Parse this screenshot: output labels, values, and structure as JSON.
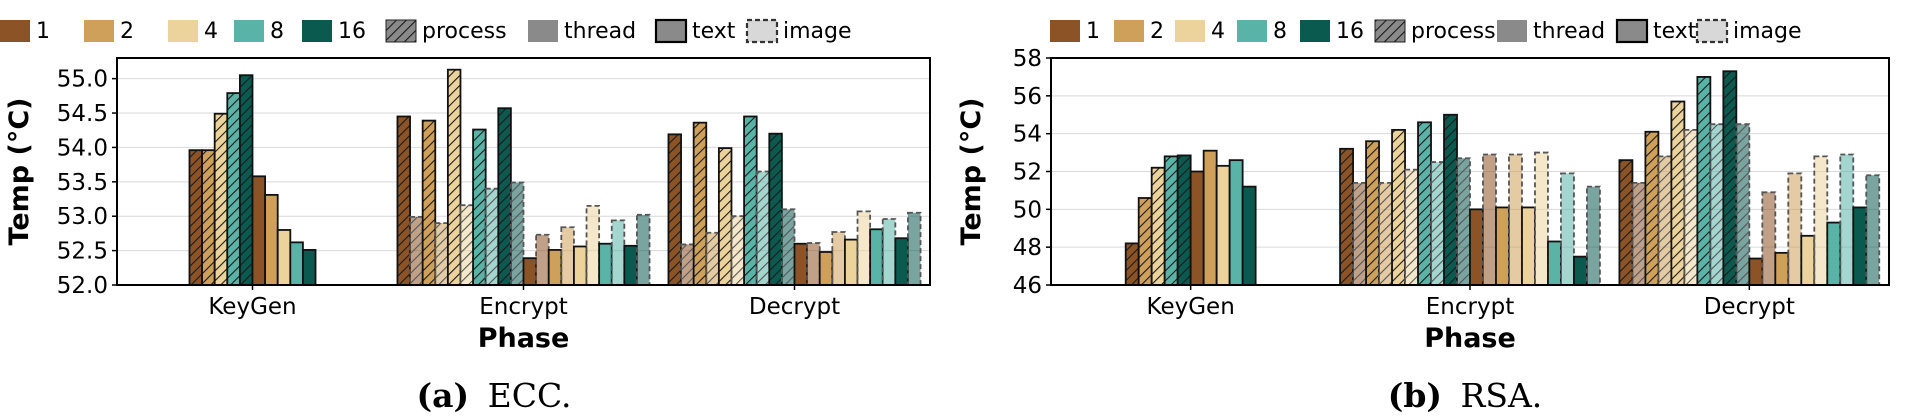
{
  "legend": [
    {
      "label": "1",
      "kind": "color",
      "color": "#8c5426"
    },
    {
      "label": "2",
      "kind": "color",
      "color": "#cfa05a"
    },
    {
      "label": "4",
      "kind": "color",
      "color": "#ecd39c"
    },
    {
      "label": "8",
      "kind": "color",
      "color": "#5ab3a7"
    },
    {
      "label": "16",
      "kind": "color",
      "color": "#0b5a50"
    },
    {
      "label": "process",
      "kind": "process"
    },
    {
      "label": "thread",
      "kind": "thread"
    },
    {
      "label": "text",
      "kind": "text"
    },
    {
      "label": "image",
      "kind": "image"
    }
  ],
  "colors": {
    "1": "#8c5426",
    "2": "#cfa05a",
    "4": "#ecd39c",
    "8": "#5ab3a7",
    "16": "#0b5a50"
  },
  "chart_data": [
    {
      "type": "bar",
      "caption_bold": "(a)",
      "caption_text": "ECC.",
      "xlabel": "Phase",
      "ylabel": "Temp (°C)",
      "ylim": [
        52.0,
        55.3
      ],
      "yticks": [
        "52.0",
        "52.5",
        "53.0",
        "53.5",
        "54.0",
        "54.5",
        "55.0"
      ],
      "ytick_values": [
        52.0,
        52.5,
        53.0,
        53.5,
        54.0,
        54.5,
        55.0
      ],
      "categories": [
        "KeyGen",
        "Encrypt",
        "Decrypt"
      ],
      "groups": [
        {
          "category": "KeyGen",
          "bars": [
            {
              "series": "1",
              "mode": "process",
              "data": "text",
              "value": 53.96
            },
            {
              "series": "2",
              "mode": "process",
              "data": "text",
              "value": 53.96
            },
            {
              "series": "4",
              "mode": "process",
              "data": "text",
              "value": 54.49
            },
            {
              "series": "8",
              "mode": "process",
              "data": "text",
              "value": 54.79
            },
            {
              "series": "16",
              "mode": "process",
              "data": "text",
              "value": 55.05
            },
            {
              "series": "1",
              "mode": "thread",
              "data": "text",
              "value": 53.58
            },
            {
              "series": "2",
              "mode": "thread",
              "data": "text",
              "value": 53.31
            },
            {
              "series": "4",
              "mode": "thread",
              "data": "text",
              "value": 52.8
            },
            {
              "series": "8",
              "mode": "thread",
              "data": "text",
              "value": 52.62
            },
            {
              "series": "16",
              "mode": "thread",
              "data": "text",
              "value": 52.51
            }
          ]
        },
        {
          "category": "Encrypt",
          "bars": [
            {
              "series": "1",
              "mode": "process",
              "data": "text",
              "value": 54.45
            },
            {
              "series": "1",
              "mode": "process",
              "data": "image",
              "value": 52.99
            },
            {
              "series": "2",
              "mode": "process",
              "data": "text",
              "value": 54.39
            },
            {
              "series": "2",
              "mode": "process",
              "data": "image",
              "value": 52.9
            },
            {
              "series": "4",
              "mode": "process",
              "data": "text",
              "value": 55.13
            },
            {
              "series": "4",
              "mode": "process",
              "data": "image",
              "value": 53.16
            },
            {
              "series": "8",
              "mode": "process",
              "data": "text",
              "value": 54.26
            },
            {
              "series": "8",
              "mode": "process",
              "data": "image",
              "value": 53.4
            },
            {
              "series": "16",
              "mode": "process",
              "data": "text",
              "value": 54.57
            },
            {
              "series": "16",
              "mode": "process",
              "data": "image",
              "value": 53.49
            },
            {
              "series": "1",
              "mode": "thread",
              "data": "text",
              "value": 52.39
            },
            {
              "series": "1",
              "mode": "thread",
              "data": "image",
              "value": 52.73
            },
            {
              "series": "2",
              "mode": "thread",
              "data": "text",
              "value": 52.51
            },
            {
              "series": "2",
              "mode": "thread",
              "data": "image",
              "value": 52.84
            },
            {
              "series": "4",
              "mode": "thread",
              "data": "text",
              "value": 52.56
            },
            {
              "series": "4",
              "mode": "thread",
              "data": "image",
              "value": 53.15
            },
            {
              "series": "8",
              "mode": "thread",
              "data": "text",
              "value": 52.6
            },
            {
              "series": "8",
              "mode": "thread",
              "data": "image",
              "value": 52.94
            },
            {
              "series": "16",
              "mode": "thread",
              "data": "text",
              "value": 52.57
            },
            {
              "series": "16",
              "mode": "thread",
              "data": "image",
              "value": 53.02
            }
          ]
        },
        {
          "category": "Decrypt",
          "bars": [
            {
              "series": "1",
              "mode": "process",
              "data": "text",
              "value": 54.19
            },
            {
              "series": "1",
              "mode": "process",
              "data": "image",
              "value": 52.59
            },
            {
              "series": "2",
              "mode": "process",
              "data": "text",
              "value": 54.36
            },
            {
              "series": "2",
              "mode": "process",
              "data": "image",
              "value": 52.76
            },
            {
              "series": "4",
              "mode": "process",
              "data": "text",
              "value": 53.99
            },
            {
              "series": "4",
              "mode": "process",
              "data": "image",
              "value": 53.0
            },
            {
              "series": "8",
              "mode": "process",
              "data": "text",
              "value": 54.45
            },
            {
              "series": "8",
              "mode": "process",
              "data": "image",
              "value": 53.65
            },
            {
              "series": "16",
              "mode": "process",
              "data": "text",
              "value": 54.2
            },
            {
              "series": "16",
              "mode": "process",
              "data": "image",
              "value": 53.1
            },
            {
              "series": "1",
              "mode": "thread",
              "data": "text",
              "value": 52.6
            },
            {
              "series": "1",
              "mode": "thread",
              "data": "image",
              "value": 52.61
            },
            {
              "series": "2",
              "mode": "thread",
              "data": "text",
              "value": 52.48
            },
            {
              "series": "2",
              "mode": "thread",
              "data": "image",
              "value": 52.77
            },
            {
              "series": "4",
              "mode": "thread",
              "data": "text",
              "value": 52.66
            },
            {
              "series": "4",
              "mode": "thread",
              "data": "image",
              "value": 53.07
            },
            {
              "series": "8",
              "mode": "thread",
              "data": "text",
              "value": 52.81
            },
            {
              "series": "8",
              "mode": "thread",
              "data": "image",
              "value": 52.96
            },
            {
              "series": "16",
              "mode": "thread",
              "data": "text",
              "value": 52.68
            },
            {
              "series": "16",
              "mode": "thread",
              "data": "image",
              "value": 53.05
            }
          ]
        }
      ]
    },
    {
      "type": "bar",
      "caption_bold": "(b)",
      "caption_text": "RSA.",
      "xlabel": "Phase",
      "ylabel": "Temp (°C)",
      "ylim": [
        46,
        58
      ],
      "yticks": [
        "46",
        "48",
        "50",
        "52",
        "54",
        "56",
        "58"
      ],
      "ytick_values": [
        46,
        48,
        50,
        52,
        54,
        56,
        58
      ],
      "categories": [
        "KeyGen",
        "Encrypt",
        "Decrypt"
      ],
      "groups": [
        {
          "category": "KeyGen",
          "bars": [
            {
              "series": "1",
              "mode": "process",
              "data": "text",
              "value": 48.2
            },
            {
              "series": "2",
              "mode": "process",
              "data": "text",
              "value": 50.6
            },
            {
              "series": "4",
              "mode": "process",
              "data": "text",
              "value": 52.2
            },
            {
              "series": "8",
              "mode": "process",
              "data": "text",
              "value": 52.8
            },
            {
              "series": "16",
              "mode": "process",
              "data": "text",
              "value": 52.85
            },
            {
              "series": "1",
              "mode": "thread",
              "data": "text",
              "value": 52.0
            },
            {
              "series": "2",
              "mode": "thread",
              "data": "text",
              "value": 53.1
            },
            {
              "series": "4",
              "mode": "thread",
              "data": "text",
              "value": 52.3
            },
            {
              "series": "8",
              "mode": "thread",
              "data": "text",
              "value": 52.6
            },
            {
              "series": "16",
              "mode": "thread",
              "data": "text",
              "value": 51.2
            }
          ]
        },
        {
          "category": "Encrypt",
          "bars": [
            {
              "series": "1",
              "mode": "process",
              "data": "text",
              "value": 53.2
            },
            {
              "series": "1",
              "mode": "process",
              "data": "image",
              "value": 51.4
            },
            {
              "series": "2",
              "mode": "process",
              "data": "text",
              "value": 53.6
            },
            {
              "series": "2",
              "mode": "process",
              "data": "image",
              "value": 51.4
            },
            {
              "series": "4",
              "mode": "process",
              "data": "text",
              "value": 54.2
            },
            {
              "series": "4",
              "mode": "process",
              "data": "image",
              "value": 52.1
            },
            {
              "series": "8",
              "mode": "process",
              "data": "text",
              "value": 54.6
            },
            {
              "series": "8",
              "mode": "process",
              "data": "image",
              "value": 52.5
            },
            {
              "series": "16",
              "mode": "process",
              "data": "text",
              "value": 55.0
            },
            {
              "series": "16",
              "mode": "process",
              "data": "image",
              "value": 52.7
            },
            {
              "series": "1",
              "mode": "thread",
              "data": "text",
              "value": 50.0
            },
            {
              "series": "1",
              "mode": "thread",
              "data": "image",
              "value": 52.9
            },
            {
              "series": "2",
              "mode": "thread",
              "data": "text",
              "value": 50.1
            },
            {
              "series": "2",
              "mode": "thread",
              "data": "image",
              "value": 52.9
            },
            {
              "series": "4",
              "mode": "thread",
              "data": "text",
              "value": 50.1
            },
            {
              "series": "4",
              "mode": "thread",
              "data": "image",
              "value": 53.0
            },
            {
              "series": "8",
              "mode": "thread",
              "data": "text",
              "value": 48.3
            },
            {
              "series": "8",
              "mode": "thread",
              "data": "image",
              "value": 51.9
            },
            {
              "series": "16",
              "mode": "thread",
              "data": "text",
              "value": 47.5
            },
            {
              "series": "16",
              "mode": "thread",
              "data": "image",
              "value": 51.2
            }
          ]
        },
        {
          "category": "Decrypt",
          "bars": [
            {
              "series": "1",
              "mode": "process",
              "data": "text",
              "value": 52.6
            },
            {
              "series": "1",
              "mode": "process",
              "data": "image",
              "value": 51.4
            },
            {
              "series": "2",
              "mode": "process",
              "data": "text",
              "value": 54.1
            },
            {
              "series": "2",
              "mode": "process",
              "data": "image",
              "value": 52.8
            },
            {
              "series": "4",
              "mode": "process",
              "data": "text",
              "value": 55.7
            },
            {
              "series": "4",
              "mode": "process",
              "data": "image",
              "value": 54.2
            },
            {
              "series": "8",
              "mode": "process",
              "data": "text",
              "value": 57.0
            },
            {
              "series": "8",
              "mode": "process",
              "data": "image",
              "value": 54.5
            },
            {
              "series": "16",
              "mode": "process",
              "data": "text",
              "value": 57.3
            },
            {
              "series": "16",
              "mode": "process",
              "data": "image",
              "value": 54.5
            },
            {
              "series": "1",
              "mode": "thread",
              "data": "text",
              "value": 47.4
            },
            {
              "series": "1",
              "mode": "thread",
              "data": "image",
              "value": 50.9
            },
            {
              "series": "2",
              "mode": "thread",
              "data": "text",
              "value": 47.7
            },
            {
              "series": "2",
              "mode": "thread",
              "data": "image",
              "value": 51.9
            },
            {
              "series": "4",
              "mode": "thread",
              "data": "text",
              "value": 48.6
            },
            {
              "series": "4",
              "mode": "thread",
              "data": "image",
              "value": 52.8
            },
            {
              "series": "8",
              "mode": "thread",
              "data": "text",
              "value": 49.3
            },
            {
              "series": "8",
              "mode": "thread",
              "data": "image",
              "value": 52.9
            },
            {
              "series": "16",
              "mode": "thread",
              "data": "text",
              "value": 50.1
            },
            {
              "series": "16",
              "mode": "thread",
              "data": "image",
              "value": 51.8
            }
          ]
        }
      ]
    }
  ]
}
